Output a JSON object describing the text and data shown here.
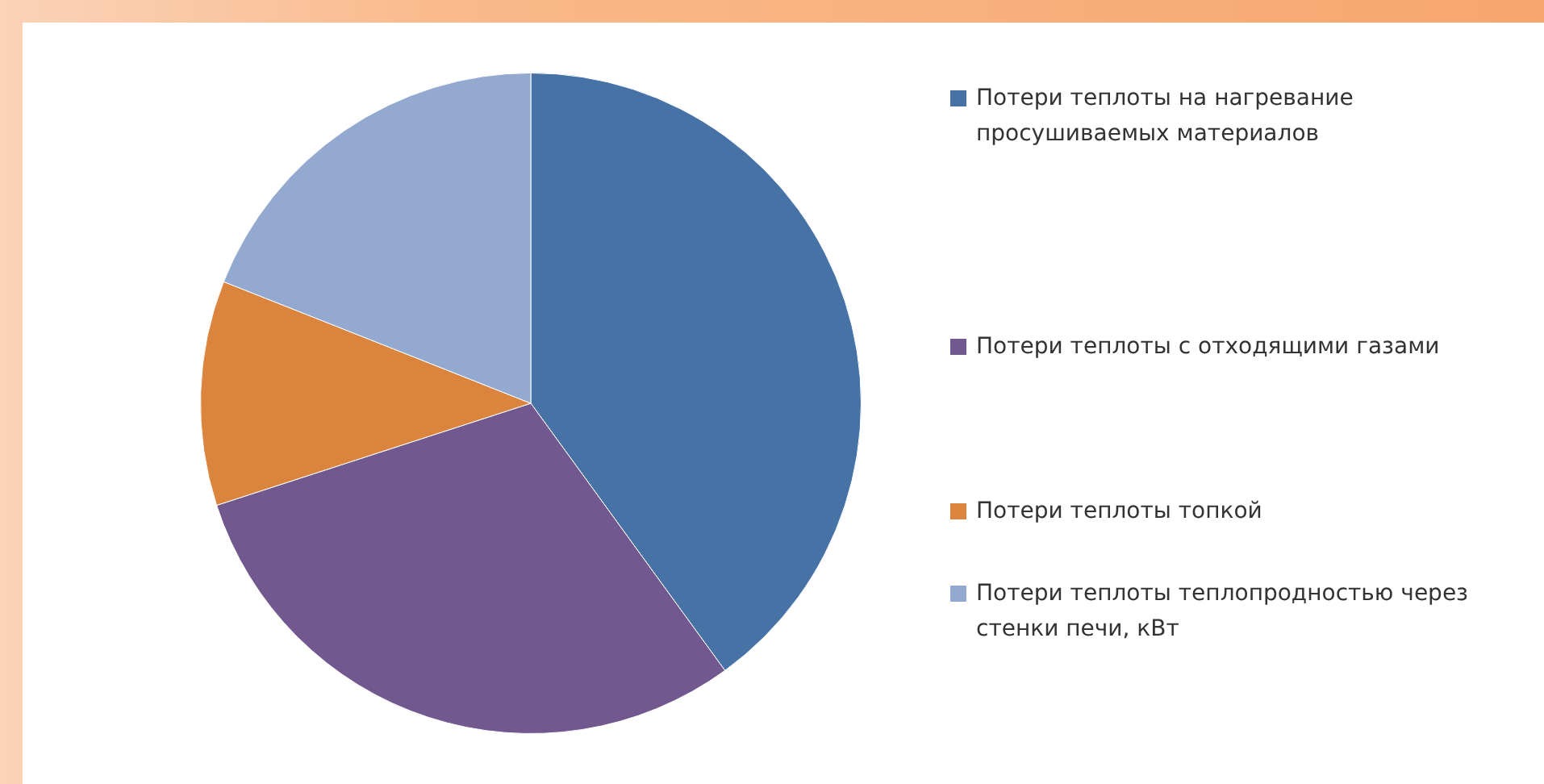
{
  "chart_data": {
    "type": "pie",
    "categories": [
      "Потери теплоты на нагревание просушиваемых материалов",
      "Потери теплоты с отходящими газами",
      "Потери теплоты топкой",
      "Потери теплоты теплопродностью через стенки печи, кВт"
    ],
    "values": [
      40,
      30,
      11,
      19
    ],
    "colors": [
      "#4672a6",
      "#71588f",
      "#db843d",
      "#93a9cf"
    ],
    "legend": "right"
  }
}
